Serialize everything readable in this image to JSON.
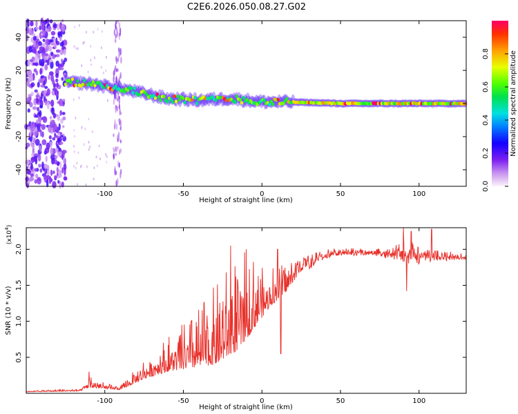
{
  "figure": {
    "title": "C2E6.2026.050.08.27.G02"
  },
  "chart_data": [
    {
      "type": "heatmap",
      "title": "C2E6.2026.050.08.27.G02",
      "xlabel": "Height of straight line (km)",
      "ylabel": "Frequency (Hz)",
      "xlim": [
        -150,
        130
      ],
      "ylim": [
        -50,
        50
      ],
      "xticks": [
        -100,
        -50,
        0,
        50,
        100
      ],
      "yticks": [
        -40,
        -20,
        0,
        20,
        40
      ],
      "colorbar": {
        "label": "Normalized spectral amplitude",
        "range": [
          0,
          1
        ],
        "ticks": [
          0.0,
          0.2,
          0.4,
          0.6,
          0.8
        ],
        "colormap": "rainbow (magenta-white to red)"
      },
      "features": {
        "noise_region_x": [
          -150,
          -125
        ],
        "stripe_x": -92,
        "signal_start_x": -125,
        "signal_freq_trend": [
          {
            "x": -125,
            "freq": 13
          },
          {
            "x": -110,
            "freq": 12
          },
          {
            "x": -90,
            "freq": 9
          },
          {
            "x": -75,
            "freq": 6
          },
          {
            "x": -60,
            "freq": 3
          },
          {
            "x": -40,
            "freq": 2
          },
          {
            "x": -20,
            "freq": 3
          },
          {
            "x": 0,
            "freq": 1
          },
          {
            "x": 15,
            "freq": 1
          },
          {
            "x": 50,
            "freq": 0
          },
          {
            "x": 100,
            "freq": 0
          },
          {
            "x": 130,
            "freq": 0
          }
        ]
      },
      "grid": false
    },
    {
      "type": "line",
      "xlabel": "Height of straight line (km)",
      "ylabel": "SNR (10 * v/v)",
      "y_multiplier_label": "(x10",
      "y_multiplier_exp": "4",
      "xlim": [
        -150,
        130
      ],
      "ylim": [
        0,
        2.3
      ],
      "xticks": [
        -100,
        -50,
        0,
        50,
        100
      ],
      "yticks": [
        0.5,
        1.0,
        1.5,
        2.0
      ],
      "ytick_labels": [
        "0.5",
        "1.0",
        "1.5",
        "2.0"
      ],
      "series": [
        {
          "color": "#e8322c",
          "envelope": [
            {
              "x": -150,
              "base": 0.02,
              "spread": 0.02
            },
            {
              "x": -115,
              "base": 0.03,
              "spread": 0.04
            },
            {
              "x": -110,
              "base": 0.08,
              "spread": 0.2
            },
            {
              "x": -100,
              "base": 0.06,
              "spread": 0.08
            },
            {
              "x": -90,
              "base": 0.05,
              "spread": 0.05
            },
            {
              "x": -75,
              "base": 0.2,
              "spread": 0.3
            },
            {
              "x": -60,
              "base": 0.3,
              "spread": 0.5
            },
            {
              "x": -45,
              "base": 0.35,
              "spread": 0.7
            },
            {
              "x": -30,
              "base": 0.4,
              "spread": 1.1
            },
            {
              "x": -15,
              "base": 0.6,
              "spread": 1.4
            },
            {
              "x": -5,
              "base": 0.9,
              "spread": 1.0
            },
            {
              "x": 5,
              "base": 1.2,
              "spread": 0.6
            },
            {
              "x": 15,
              "base": 1.4,
              "spread": 0.4
            },
            {
              "x": 25,
              "base": 1.7,
              "spread": 0.3
            },
            {
              "x": 35,
              "base": 1.88,
              "spread": 0.12
            },
            {
              "x": 50,
              "base": 1.95,
              "spread": 0.08
            },
            {
              "x": 70,
              "base": 1.95,
              "spread": 0.08
            },
            {
              "x": 85,
              "base": 1.93,
              "spread": 0.15
            },
            {
              "x": 95,
              "base": 1.92,
              "spread": 0.3
            },
            {
              "x": 110,
              "base": 1.9,
              "spread": 0.15
            },
            {
              "x": 130,
              "base": 1.88,
              "spread": 0.05
            }
          ],
          "notable_points": [
            {
              "x": -110,
              "y": 0.3
            },
            {
              "x": -45,
              "y": 1.0
            },
            {
              "x": -20,
              "y": 2.05
            },
            {
              "x": -10,
              "y": 2.0
            },
            {
              "x": 10,
              "y": 2.0
            },
            {
              "x": 12,
              "y": 0.55
            },
            {
              "x": 90,
              "y": 2.3
            },
            {
              "x": 95,
              "y": 2.25
            },
            {
              "x": 108,
              "y": 2.28
            },
            {
              "x": 92,
              "y": 1.42
            }
          ]
        }
      ],
      "grid": false
    }
  ]
}
